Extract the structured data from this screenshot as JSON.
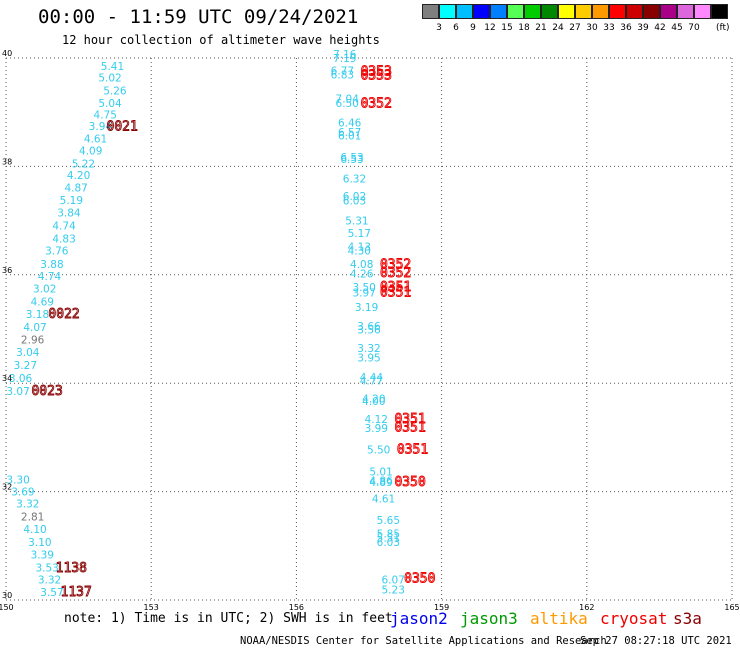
{
  "header": {
    "title": "00:00 - 11:59 UTC 09/24/2021",
    "subtitle": "12 hour collection of altimeter wave heights"
  },
  "legend": {
    "unit": "(ft)",
    "bins": [
      {
        "label": "",
        "color": "#7f7f7f"
      },
      {
        "label": "3",
        "color": "#00ffff"
      },
      {
        "label": "6",
        "color": "#00bfff"
      },
      {
        "label": "9",
        "color": "#0000ff"
      },
      {
        "label": "12",
        "color": "#0080ff"
      },
      {
        "label": "15",
        "color": "#55ff55"
      },
      {
        "label": "18",
        "color": "#00cc00"
      },
      {
        "label": "21",
        "color": "#008800"
      },
      {
        "label": "24",
        "color": "#ffff00"
      },
      {
        "label": "27",
        "color": "#ffcc00"
      },
      {
        "label": "30",
        "color": "#ff9900"
      },
      {
        "label": "33",
        "color": "#ff0000"
      },
      {
        "label": "36",
        "color": "#cc0000"
      },
      {
        "label": "39",
        "color": "#880000"
      },
      {
        "label": "42",
        "color": "#aa0088"
      },
      {
        "label": "45",
        "color": "#dd66dd"
      },
      {
        "label": "70",
        "color": "#ff88ff"
      },
      {
        "label": "",
        "color": "#000000"
      }
    ]
  },
  "map": {
    "lon_range": [
      150,
      165
    ],
    "lat_range": [
      30,
      40
    ],
    "lon_ticks": [
      "150",
      "153",
      "156",
      "159",
      "162",
      "165"
    ],
    "lat_ticks": [
      "30",
      "32",
      "34",
      "36",
      "38",
      "40"
    ]
  },
  "observations": [
    {
      "lon": 152.2,
      "lat": 39.78,
      "text": "5.41",
      "color": "#33ccee"
    },
    {
      "lon": 152.15,
      "lat": 39.57,
      "text": "5.02",
      "color": "#33ccee"
    },
    {
      "lon": 152.25,
      "lat": 39.33,
      "text": "5.26",
      "color": "#33ccee"
    },
    {
      "lon": 152.15,
      "lat": 39.1,
      "text": "5.04",
      "color": "#33ccee"
    },
    {
      "lon": 152.05,
      "lat": 38.88,
      "text": "4.75",
      "color": "#33ccee"
    },
    {
      "lon": 151.95,
      "lat": 38.67,
      "text": "3.94",
      "color": "#33ccee"
    },
    {
      "lon": 151.85,
      "lat": 38.44,
      "text": "4.61",
      "color": "#33ccee"
    },
    {
      "lon": 151.75,
      "lat": 38.22,
      "text": "4.09",
      "color": "#33ccee"
    },
    {
      "lon": 151.6,
      "lat": 37.98,
      "text": "5.22",
      "color": "#33ccee"
    },
    {
      "lon": 151.5,
      "lat": 37.77,
      "text": "4.20",
      "color": "#33ccee"
    },
    {
      "lon": 151.45,
      "lat": 37.54,
      "text": "4.87",
      "color": "#33ccee"
    },
    {
      "lon": 151.35,
      "lat": 37.31,
      "text": "5.19",
      "color": "#33ccee"
    },
    {
      "lon": 151.3,
      "lat": 37.08,
      "text": "3.84",
      "color": "#33ccee"
    },
    {
      "lon": 151.2,
      "lat": 36.84,
      "text": "4.74",
      "color": "#33ccee"
    },
    {
      "lon": 151.2,
      "lat": 36.6,
      "text": "4.83",
      "color": "#33ccee"
    },
    {
      "lon": 151.05,
      "lat": 36.37,
      "text": "3.76",
      "color": "#33ccee"
    },
    {
      "lon": 150.95,
      "lat": 36.13,
      "text": "3.88",
      "color": "#33ccee"
    },
    {
      "lon": 150.9,
      "lat": 35.9,
      "text": "4.74",
      "color": "#33ccee"
    },
    {
      "lon": 150.8,
      "lat": 35.67,
      "text": "3.02",
      "color": "#33ccee"
    },
    {
      "lon": 150.75,
      "lat": 35.43,
      "text": "4.69",
      "color": "#33ccee"
    },
    {
      "lon": 150.65,
      "lat": 35.2,
      "text": "3.18",
      "color": "#33ccee"
    },
    {
      "lon": 150.6,
      "lat": 34.96,
      "text": "4.07",
      "color": "#33ccee"
    },
    {
      "lon": 150.55,
      "lat": 34.73,
      "text": "2.96",
      "color": "#777777"
    },
    {
      "lon": 150.45,
      "lat": 34.5,
      "text": "3.04",
      "color": "#33ccee"
    },
    {
      "lon": 150.4,
      "lat": 34.26,
      "text": "3.27",
      "color": "#33ccee"
    },
    {
      "lon": 150.3,
      "lat": 34.02,
      "text": "3.06",
      "color": "#33ccee"
    },
    {
      "lon": 150.25,
      "lat": 33.78,
      "text": "3.07",
      "color": "#33ccee"
    },
    {
      "lon": 150.25,
      "lat": 32.15,
      "text": "3.30",
      "color": "#33ccee"
    },
    {
      "lon": 150.35,
      "lat": 31.93,
      "text": "3.69",
      "color": "#33ccee"
    },
    {
      "lon": 150.45,
      "lat": 31.71,
      "text": "3.32",
      "color": "#33ccee"
    },
    {
      "lon": 150.55,
      "lat": 31.47,
      "text": "2.81",
      "color": "#777777"
    },
    {
      "lon": 150.6,
      "lat": 31.24,
      "text": "4.10",
      "color": "#33ccee"
    },
    {
      "lon": 150.7,
      "lat": 31.0,
      "text": "3.10",
      "color": "#33ccee"
    },
    {
      "lon": 150.75,
      "lat": 30.77,
      "text": "3.39",
      "color": "#33ccee"
    },
    {
      "lon": 150.85,
      "lat": 30.53,
      "text": "3.53",
      "color": "#33ccee"
    },
    {
      "lon": 150.9,
      "lat": 30.3,
      "text": "3.32",
      "color": "#33ccee"
    },
    {
      "lon": 150.95,
      "lat": 30.07,
      "text": "3.57",
      "color": "#33ccee"
    },
    {
      "lon": 157.0,
      "lat": 40.0,
      "text": "7.16",
      "color": "#33ccee"
    },
    {
      "lon": 157.0,
      "lat": 39.93,
      "text": "7.19",
      "color": "#33ccee"
    },
    {
      "lon": 156.95,
      "lat": 39.7,
      "text": "6.77",
      "color": "#33ccee"
    },
    {
      "lon": 156.95,
      "lat": 39.62,
      "text": "6.83",
      "color": "#33ccee"
    },
    {
      "lon": 157.05,
      "lat": 39.18,
      "text": "7.04",
      "color": "#33ccee"
    },
    {
      "lon": 157.05,
      "lat": 39.1,
      "text": "6.50",
      "color": "#33ccee"
    },
    {
      "lon": 157.1,
      "lat": 38.74,
      "text": "6.46",
      "color": "#33ccee"
    },
    {
      "lon": 157.1,
      "lat": 38.56,
      "text": "6.57",
      "color": "#33ccee"
    },
    {
      "lon": 157.1,
      "lat": 38.5,
      "text": "6.01",
      "color": "#33ccee"
    },
    {
      "lon": 157.15,
      "lat": 38.1,
      "text": "6.53",
      "color": "#33ccee"
    },
    {
      "lon": 157.15,
      "lat": 38.06,
      "text": "6.53",
      "color": "#33ccee"
    },
    {
      "lon": 157.2,
      "lat": 37.7,
      "text": "6.32",
      "color": "#33ccee"
    },
    {
      "lon": 157.2,
      "lat": 37.38,
      "text": "6.02",
      "color": "#33ccee"
    },
    {
      "lon": 157.2,
      "lat": 37.3,
      "text": "6.03",
      "color": "#33ccee"
    },
    {
      "lon": 157.25,
      "lat": 36.93,
      "text": "5.31",
      "color": "#33ccee"
    },
    {
      "lon": 157.3,
      "lat": 36.7,
      "text": "5.17",
      "color": "#33ccee"
    },
    {
      "lon": 157.3,
      "lat": 36.45,
      "text": "4.13",
      "color": "#33ccee"
    },
    {
      "lon": 157.3,
      "lat": 36.37,
      "text": "4.30",
      "color": "#33ccee"
    },
    {
      "lon": 157.35,
      "lat": 36.13,
      "text": "4.08",
      "color": "#33ccee"
    },
    {
      "lon": 157.35,
      "lat": 35.95,
      "text": "4.26",
      "color": "#33ccee"
    },
    {
      "lon": 157.4,
      "lat": 35.7,
      "text": "3.50",
      "color": "#33ccee"
    },
    {
      "lon": 157.4,
      "lat": 35.6,
      "text": "3.97",
      "color": "#33ccee"
    },
    {
      "lon": 157.45,
      "lat": 35.33,
      "text": "3.19",
      "color": "#33ccee"
    },
    {
      "lon": 157.5,
      "lat": 34.98,
      "text": "3.66",
      "color": "#33ccee"
    },
    {
      "lon": 157.5,
      "lat": 34.92,
      "text": "3.56",
      "color": "#33ccee"
    },
    {
      "lon": 157.5,
      "lat": 34.58,
      "text": "3.32",
      "color": "#33ccee"
    },
    {
      "lon": 157.5,
      "lat": 34.4,
      "text": "3.95",
      "color": "#33ccee"
    },
    {
      "lon": 157.55,
      "lat": 34.04,
      "text": "4.44",
      "color": "#33ccee"
    },
    {
      "lon": 157.55,
      "lat": 33.98,
      "text": "4.77",
      "color": "#33ccee"
    },
    {
      "lon": 157.6,
      "lat": 33.64,
      "text": "4.20",
      "color": "#33ccee"
    },
    {
      "lon": 157.6,
      "lat": 33.6,
      "text": "4.00",
      "color": "#33ccee"
    },
    {
      "lon": 157.65,
      "lat": 33.27,
      "text": "4.12",
      "color": "#33ccee"
    },
    {
      "lon": 157.65,
      "lat": 33.1,
      "text": "3.99",
      "color": "#33ccee"
    },
    {
      "lon": 157.7,
      "lat": 32.7,
      "text": "5.50",
      "color": "#33ccee"
    },
    {
      "lon": 157.75,
      "lat": 32.3,
      "text": "5.01",
      "color": "#33ccee"
    },
    {
      "lon": 157.75,
      "lat": 32.13,
      "text": "4.86",
      "color": "#33ccee"
    },
    {
      "lon": 157.75,
      "lat": 32.1,
      "text": "4.89",
      "color": "#33ccee"
    },
    {
      "lon": 157.8,
      "lat": 31.8,
      "text": "4.61",
      "color": "#33ccee"
    },
    {
      "lon": 157.9,
      "lat": 31.4,
      "text": "5.65",
      "color": "#33ccee"
    },
    {
      "lon": 157.9,
      "lat": 31.15,
      "text": "5.85",
      "color": "#33ccee"
    },
    {
      "lon": 157.9,
      "lat": 31.08,
      "text": "5.51",
      "color": "#33ccee"
    },
    {
      "lon": 157.9,
      "lat": 31.0,
      "text": "6.03",
      "color": "#33ccee"
    },
    {
      "lon": 158.0,
      "lat": 30.3,
      "text": "6.07",
      "color": "#33ccee"
    },
    {
      "lon": 158.0,
      "lat": 30.12,
      "text": "5.23",
      "color": "#33ccee"
    }
  ],
  "passes": [
    {
      "lon": 152.4,
      "lat": 38.66,
      "text": "0021",
      "color": "#880000"
    },
    {
      "lon": 151.2,
      "lat": 35.2,
      "text": "0022",
      "color": "#880000"
    },
    {
      "lon": 150.85,
      "lat": 33.78,
      "text": "0023",
      "color": "#880000"
    },
    {
      "lon": 151.35,
      "lat": 30.52,
      "text": "1138",
      "color": "#880000"
    },
    {
      "lon": 151.45,
      "lat": 30.07,
      "text": "1137",
      "color": "#880000"
    },
    {
      "lon": 157.65,
      "lat": 39.68,
      "text": "0353",
      "color": "#ee0000"
    },
    {
      "lon": 157.65,
      "lat": 39.6,
      "text": "0353",
      "color": "#ee0000"
    },
    {
      "lon": 157.65,
      "lat": 39.09,
      "text": "0352",
      "color": "#ee0000"
    },
    {
      "lon": 158.05,
      "lat": 36.12,
      "text": "0352",
      "color": "#ee0000"
    },
    {
      "lon": 158.05,
      "lat": 35.96,
      "text": "0352",
      "color": "#ee0000"
    },
    {
      "lon": 158.05,
      "lat": 35.7,
      "text": "0351",
      "color": "#ee0000"
    },
    {
      "lon": 158.05,
      "lat": 35.6,
      "text": "0351",
      "color": "#ee0000"
    },
    {
      "lon": 158.35,
      "lat": 33.27,
      "text": "0351",
      "color": "#ee0000"
    },
    {
      "lon": 158.35,
      "lat": 33.11,
      "text": "0351",
      "color": "#ee0000"
    },
    {
      "lon": 158.4,
      "lat": 32.7,
      "text": "0351",
      "color": "#ee0000"
    },
    {
      "lon": 158.35,
      "lat": 32.1,
      "text": "0350",
      "color": "#ee0000"
    },
    {
      "lon": 158.55,
      "lat": 30.32,
      "text": "0350",
      "color": "#ee0000"
    }
  ],
  "footer": {
    "note": "note: 1) Time is in UTC; 2) SWH is in feet",
    "missions": [
      {
        "name": "jason2",
        "color": "#0000ee"
      },
      {
        "name": "jason3",
        "color": "#009900"
      },
      {
        "name": "altika",
        "color": "#ff9900"
      },
      {
        "name": "cryosat",
        "color": "#ee0000"
      },
      {
        "name": "s3a",
        "color": "#880000"
      }
    ],
    "credit": "NOAA/NESDIS Center for Satellite Applications and Research",
    "timestamp": "Sep 27 08:27:18 UTC 2021"
  }
}
